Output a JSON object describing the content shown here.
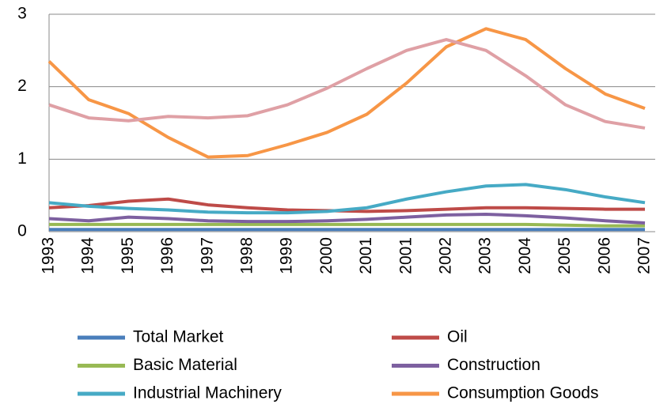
{
  "chart_data": {
    "type": "line",
    "categories": [
      "1993",
      "1994",
      "1995",
      "1996",
      "1997",
      "1998",
      "1999",
      "2000",
      "2001",
      "2001",
      "2002",
      "2003",
      "2004",
      "2005",
      "2006",
      "2007"
    ],
    "series": [
      {
        "name": "Total Market",
        "color": "#4a7ebb",
        "values": [
          0.03,
          0.03,
          0.03,
          0.03,
          0.03,
          0.03,
          0.03,
          0.03,
          0.03,
          0.03,
          0.03,
          0.03,
          0.03,
          0.03,
          0.03,
          0.03
        ]
      },
      {
        "name": "Oil",
        "color": "#be4b48",
        "values": [
          0.33,
          0.36,
          0.42,
          0.45,
          0.37,
          0.33,
          0.3,
          0.29,
          0.28,
          0.29,
          0.31,
          0.33,
          0.33,
          0.32,
          0.31,
          0.31
        ]
      },
      {
        "name": "Basic Material",
        "color": "#98b954",
        "values": [
          0.1,
          0.1,
          0.1,
          0.1,
          0.1,
          0.1,
          0.1,
          0.1,
          0.1,
          0.1,
          0.1,
          0.1,
          0.1,
          0.09,
          0.08,
          0.08
        ]
      },
      {
        "name": "Construction",
        "color": "#7d60a0",
        "values": [
          0.18,
          0.15,
          0.2,
          0.18,
          0.15,
          0.14,
          0.14,
          0.15,
          0.17,
          0.2,
          0.23,
          0.24,
          0.22,
          0.19,
          0.15,
          0.12
        ]
      },
      {
        "name": "Industrial Machinery",
        "color": "#46aac5",
        "values": [
          0.4,
          0.35,
          0.32,
          0.3,
          0.27,
          0.26,
          0.26,
          0.28,
          0.33,
          0.45,
          0.55,
          0.63,
          0.65,
          0.58,
          0.48,
          0.4
        ]
      },
      {
        "name": "Consumption Goods",
        "color": "#f79646",
        "values": [
          2.35,
          1.82,
          1.63,
          1.3,
          1.03,
          1.05,
          1.2,
          1.37,
          1.62,
          2.05,
          2.55,
          2.8,
          2.65,
          2.25,
          1.9,
          1.7
        ]
      },
      {
        "color": "#dfa0a5",
        "values": [
          1.75,
          1.57,
          1.53,
          1.59,
          1.57,
          1.6,
          1.75,
          1.98,
          2.25,
          2.5,
          2.65,
          2.5,
          2.15,
          1.75,
          1.52,
          1.43
        ]
      }
    ],
    "ylim": [
      0,
      3
    ],
    "yticks": [
      0,
      1,
      2,
      3
    ],
    "grid": true
  }
}
